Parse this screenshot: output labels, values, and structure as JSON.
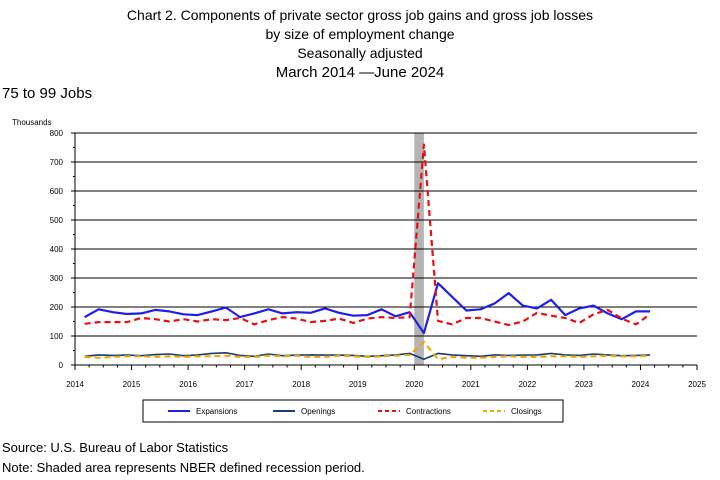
{
  "header": {
    "title_line1": "Chart 2. Components of private sector gross job gains and gross job losses",
    "title_line2": "by size of employment change",
    "title_line3": "Seasonally adjusted",
    "title_line4": "March 2014 —June 2024",
    "subtitle": "75 to 99 Jobs"
  },
  "footer": {
    "source": "Source: U.S. Bureau of Labor Statistics",
    "note": "Note: Shaded area represents NBER defined recession period."
  },
  "chart_data": {
    "type": "line",
    "ylabel": "Thousands",
    "ylim": [
      0,
      800
    ],
    "yticks": [
      0,
      100,
      200,
      300,
      400,
      500,
      600,
      700,
      800
    ],
    "xlim": [
      2014,
      2025
    ],
    "xticks": [
      "2014",
      "2015",
      "2016",
      "2017",
      "2018",
      "2019",
      "2020",
      "2021",
      "2022",
      "2023",
      "2024",
      "2025"
    ],
    "recession": [
      2020.0,
      2020.17
    ],
    "x": [
      2014.17,
      2014.42,
      2014.67,
      2014.92,
      2015.17,
      2015.42,
      2015.67,
      2015.92,
      2016.17,
      2016.42,
      2016.67,
      2016.92,
      2017.17,
      2017.42,
      2017.67,
      2017.92,
      2018.17,
      2018.42,
      2018.67,
      2018.92,
      2019.17,
      2019.42,
      2019.67,
      2019.92,
      2020.17,
      2020.42,
      2020.67,
      2020.92,
      2021.17,
      2021.42,
      2021.67,
      2021.92,
      2022.17,
      2022.42,
      2022.67,
      2022.92,
      2023.17,
      2023.42,
      2023.67,
      2023.92,
      2024.17
    ],
    "series": [
      {
        "name": "Expansions",
        "color": "#1f1fe6",
        "dash": "",
        "width": 2.2,
        "values": [
          165,
          192,
          182,
          176,
          178,
          190,
          185,
          175,
          172,
          185,
          198,
          165,
          178,
          192,
          178,
          182,
          180,
          195,
          180,
          170,
          172,
          192,
          168,
          182,
          110,
          282,
          235,
          188,
          192,
          212,
          248,
          205,
          195,
          225,
          172,
          195,
          205,
          178,
          158,
          185,
          185
        ]
      },
      {
        "name": "Openings",
        "color": "#1a3a7a",
        "dash": "",
        "width": 1.6,
        "values": [
          30,
          35,
          33,
          34,
          32,
          36,
          38,
          32,
          35,
          40,
          42,
          33,
          30,
          38,
          32,
          34,
          35,
          34,
          34,
          33,
          30,
          32,
          35,
          40,
          20,
          40,
          35,
          32,
          30,
          35,
          33,
          34,
          35,
          40,
          35,
          33,
          38,
          35,
          32,
          33,
          35
        ]
      },
      {
        "name": "Contractions",
        "color": "#e81010",
        "dash": "6,4",
        "width": 2.2,
        "values": [
          142,
          148,
          148,
          148,
          162,
          158,
          150,
          158,
          150,
          158,
          155,
          162,
          140,
          155,
          165,
          160,
          148,
          152,
          160,
          145,
          160,
          165,
          162,
          165,
          760,
          152,
          140,
          162,
          162,
          150,
          138,
          150,
          180,
          170,
          162,
          145,
          175,
          190,
          160,
          140,
          175
        ]
      },
      {
        "name": "Closings",
        "color": "#f0a800",
        "dash": "6,4",
        "width": 2.2,
        "values": [
          28,
          25,
          28,
          30,
          30,
          28,
          30,
          28,
          30,
          30,
          32,
          28,
          28,
          32,
          30,
          32,
          28,
          28,
          32,
          30,
          28,
          30,
          32,
          35,
          80,
          20,
          28,
          25,
          25,
          28,
          30,
          28,
          28,
          30,
          30,
          28,
          30,
          32,
          30,
          30,
          32
        ]
      }
    ]
  }
}
